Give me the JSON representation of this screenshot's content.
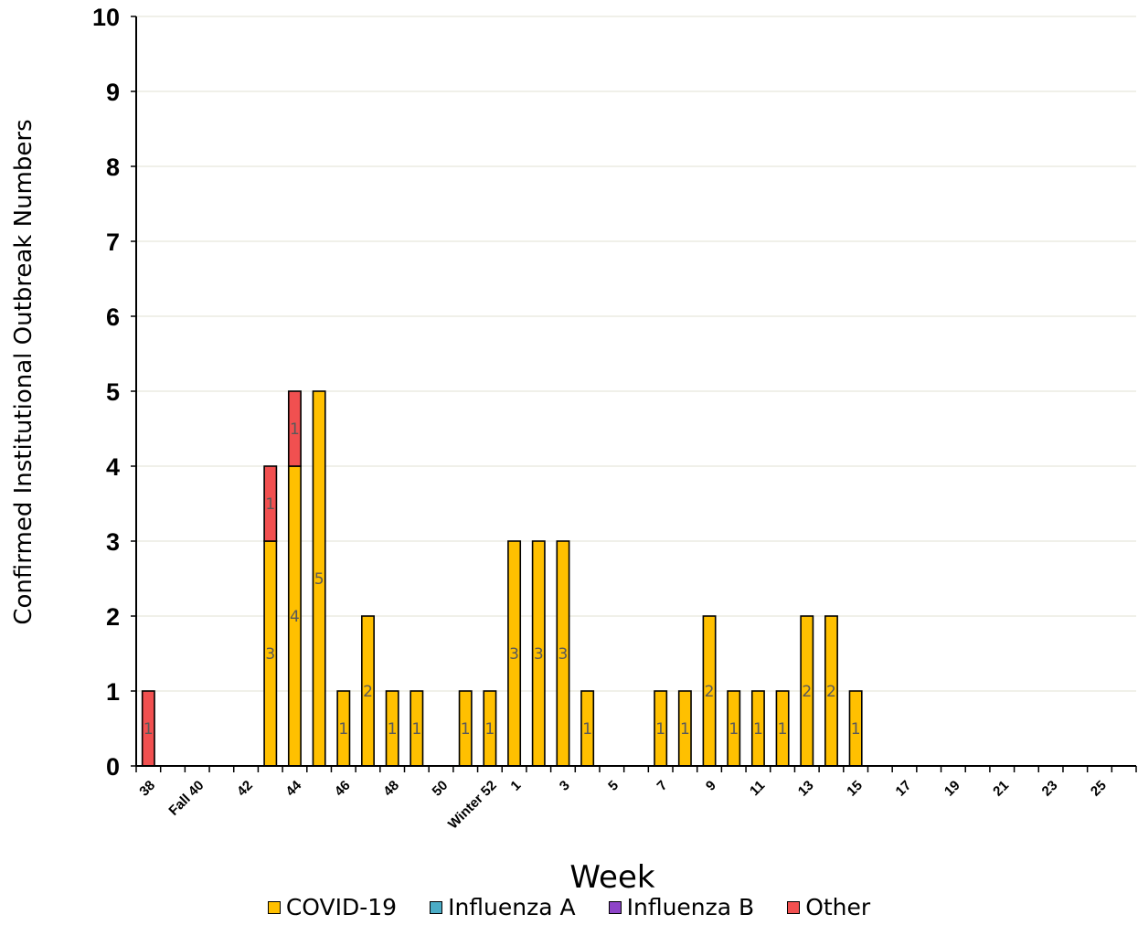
{
  "chart_data": {
    "type": "bar",
    "stacked": true,
    "xlabel": "Week",
    "ylabel": "Confirmed Institutional Outbreak Numbers",
    "ylim": [
      0,
      10
    ],
    "yticks": [
      0,
      1,
      2,
      3,
      4,
      5,
      6,
      7,
      8,
      9,
      10
    ],
    "grid": true,
    "legend_position": "bottom",
    "categories": [
      "38",
      "39",
      "40",
      "41",
      "42",
      "43",
      "44",
      "45",
      "46",
      "47",
      "48",
      "49",
      "50",
      "51",
      "52",
      "1",
      "2",
      "3",
      "4",
      "5",
      "6",
      "7",
      "8",
      "9",
      "10",
      "11",
      "12",
      "13",
      "14",
      "15",
      "16",
      "17",
      "18",
      "19",
      "20",
      "21",
      "22",
      "23",
      "24",
      "25",
      "26"
    ],
    "tick_labels": [
      "38",
      "",
      "Fall 40",
      "",
      "42",
      "",
      "44",
      "",
      "46",
      "",
      "48",
      "",
      "50",
      "",
      "Winter 52",
      "1",
      "",
      "3",
      "",
      "5",
      "",
      "7",
      "",
      "9",
      "",
      "11",
      "",
      "13",
      "",
      "15",
      "",
      "17",
      "",
      "19",
      "",
      "21",
      "",
      "23",
      "",
      "25",
      ""
    ],
    "series": [
      {
        "name": "COVID-19",
        "color": "#FFC000",
        "values": [
          0,
          0,
          0,
          0,
          0,
          3,
          4,
          5,
          1,
          2,
          1,
          1,
          0,
          1,
          1,
          3,
          3,
          3,
          1,
          0,
          0,
          1,
          1,
          2,
          1,
          1,
          1,
          2,
          2,
          1,
          0,
          0,
          0,
          0,
          0,
          0,
          0,
          0,
          0,
          0,
          0
        ]
      },
      {
        "name": "Influenza A",
        "color": "#4BACC6",
        "values": [
          0,
          0,
          0,
          0,
          0,
          0,
          0,
          0,
          0,
          0,
          0,
          0,
          0,
          0,
          0,
          0,
          0,
          0,
          0,
          0,
          0,
          0,
          0,
          0,
          0,
          0,
          0,
          0,
          0,
          0,
          0,
          0,
          0,
          0,
          0,
          0,
          0,
          0,
          0,
          0,
          0
        ]
      },
      {
        "name": "Influenza B",
        "color": "#8E44C8",
        "values": [
          0,
          0,
          0,
          0,
          0,
          0,
          0,
          0,
          0,
          0,
          0,
          0,
          0,
          0,
          0,
          0,
          0,
          0,
          0,
          0,
          0,
          0,
          0,
          0,
          0,
          0,
          0,
          0,
          0,
          0,
          0,
          0,
          0,
          0,
          0,
          0,
          0,
          0,
          0,
          0,
          0
        ]
      },
      {
        "name": "Other",
        "color": "#F15050",
        "values": [
          1,
          0,
          0,
          0,
          0,
          1,
          1,
          0,
          0,
          0,
          0,
          0,
          0,
          0,
          0,
          0,
          0,
          0,
          0,
          0,
          0,
          0,
          0,
          0,
          0,
          0,
          0,
          0,
          0,
          0,
          0,
          0,
          0,
          0,
          0,
          0,
          0,
          0,
          0,
          0,
          0
        ]
      }
    ]
  }
}
